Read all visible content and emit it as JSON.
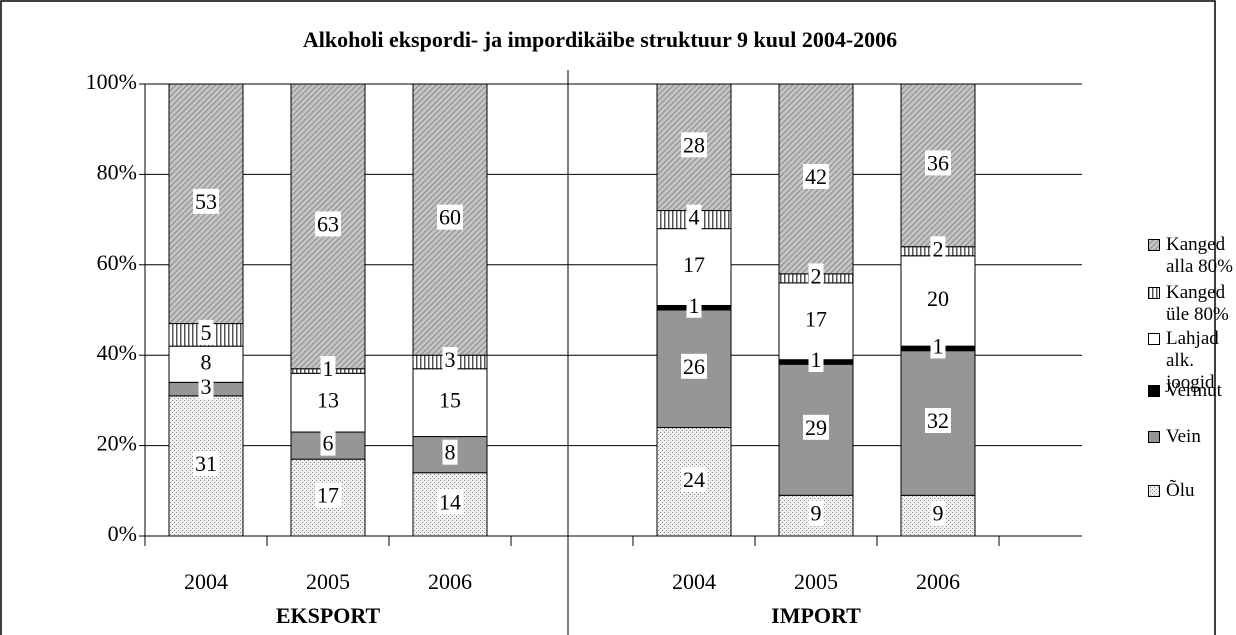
{
  "chart_data": {
    "type": "bar",
    "stacked": true,
    "title": "Alkoholi ekspordi- ja impordikäibe struktuur 9 kuul 2004-2006",
    "categories": [
      "2004",
      "2005",
      "2006",
      null,
      "2004",
      "2005",
      "2006"
    ],
    "groups": [
      "EKSPORT",
      "IMPORT"
    ],
    "series": [
      {
        "name": "Õlu",
        "color": "#e3e3e3",
        "values": [
          31,
          17,
          14,
          null,
          24,
          9,
          9
        ]
      },
      {
        "name": "Vein",
        "color": "#969696",
        "values": [
          3,
          6,
          8,
          null,
          26,
          29,
          32
        ]
      },
      {
        "name": "Vermut",
        "color": "#000000",
        "values": [
          null,
          null,
          null,
          null,
          1,
          1,
          1
        ]
      },
      {
        "name": "Lahjad alk. joogid",
        "color": "#ffffff",
        "values": [
          8,
          13,
          15,
          null,
          17,
          17,
          20
        ]
      },
      {
        "name": "Kanged üle 80%",
        "color": "#d0d0d0",
        "values": [
          5,
          1,
          3,
          null,
          4,
          2,
          2
        ]
      },
      {
        "name": "Kanged alla 80%",
        "color": "#b8b8b8",
        "values": [
          53,
          63,
          60,
          null,
          28,
          42,
          36
        ]
      }
    ],
    "ylim": [
      0,
      100
    ],
    "yticks": [
      {
        "value": 0,
        "label": "0%"
      },
      {
        "value": 20,
        "label": "20%"
      },
      {
        "value": 40,
        "label": "40%"
      },
      {
        "value": 60,
        "label": "60%"
      },
      {
        "value": 80,
        "label": "80%"
      },
      {
        "value": 100,
        "label": "100%"
      }
    ],
    "grid": true,
    "legend": "right"
  }
}
